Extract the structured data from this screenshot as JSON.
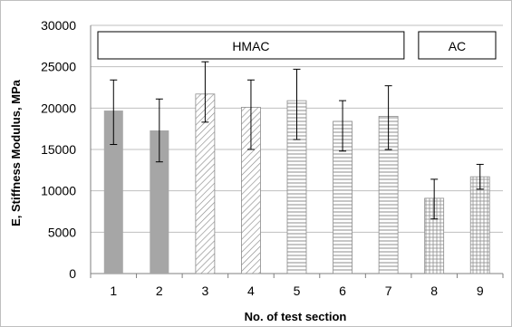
{
  "chart_data": {
    "type": "bar",
    "xlabel": "No. of test section",
    "ylabel": "E, Stiffness Modulus, MPa",
    "ylim": [
      0,
      30000
    ],
    "yticks": [
      0,
      5000,
      10000,
      15000,
      20000,
      25000,
      30000
    ],
    "grid": true,
    "categories": [
      "1",
      "2",
      "3",
      "4",
      "5",
      "6",
      "7",
      "8",
      "9"
    ],
    "values": [
      19700,
      17300,
      21700,
      20100,
      20900,
      18400,
      19000,
      9100,
      11700
    ],
    "error_low": [
      15600,
      13500,
      18300,
      15000,
      16200,
      14800,
      15000,
      6600,
      10200
    ],
    "error_high": [
      23400,
      21100,
      25600,
      23400,
      24700,
      20900,
      22700,
      11400,
      13200
    ],
    "patterns": [
      "solid",
      "solid",
      "diagonal",
      "diagonal",
      "horizontal",
      "horizontal",
      "horizontal",
      "grid",
      "grid"
    ],
    "fill_color": "#a6a6a6",
    "hatch_color": "#8c8c8c",
    "groups": [
      {
        "label": "HMAC",
        "from": "1",
        "to": "7"
      },
      {
        "label": "AC",
        "from": "8",
        "to": "9"
      }
    ]
  }
}
